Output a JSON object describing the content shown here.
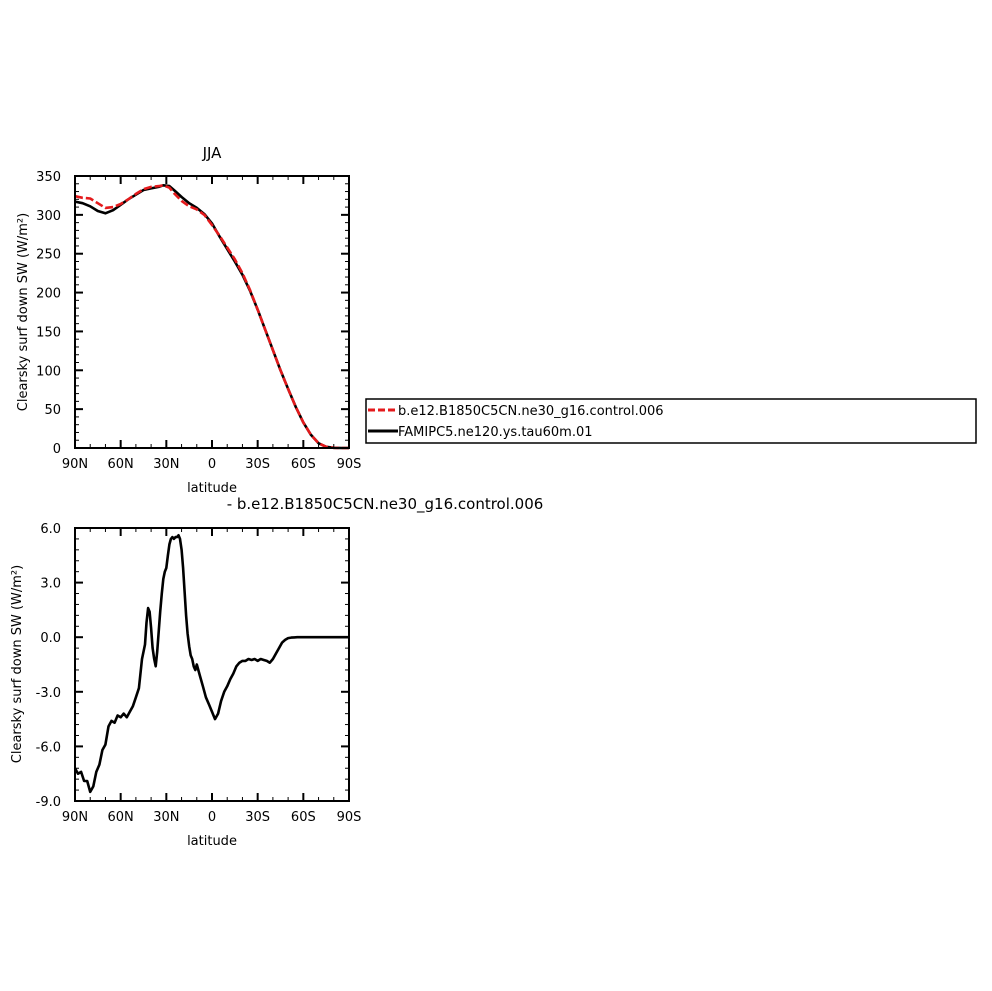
{
  "colors": {
    "model_a": "#e41a1c",
    "model_b": "#000000"
  },
  "chart_data": [
    {
      "type": "line",
      "title": "JJA",
      "xlabel": "latitude",
      "ylabel": "Clearsky surf down SW (W/m²)",
      "xlim": [
        90,
        -90
      ],
      "ylim": [
        0,
        350
      ],
      "x_ticks": [
        90,
        60,
        30,
        0,
        -30,
        -60,
        -90
      ],
      "x_tick_labels": [
        "90N",
        "60N",
        "30N",
        "0",
        "30S",
        "60S",
        "90S"
      ],
      "y_ticks": [
        0,
        50,
        100,
        150,
        200,
        250,
        300,
        350
      ],
      "y_tick_labels": [
        "0",
        "50",
        "100",
        "150",
        "200",
        "250",
        "300",
        "350"
      ],
      "legend": {
        "placement": "right",
        "style": "boxed"
      },
      "series": [
        {
          "name": "b.e12.B1850C5CN.ne30_g16.control.006",
          "color": "#e41a1c",
          "dashed": true,
          "x": [
            90,
            85,
            80,
            75,
            70,
            65,
            60,
            55,
            50,
            45,
            40,
            35,
            32,
            28,
            25,
            20,
            15,
            10,
            5,
            0,
            -5,
            -10,
            -15,
            -20,
            -25,
            -30,
            -35,
            -40,
            -45,
            -50,
            -55,
            -60,
            -65,
            -70,
            -75,
            -80,
            -85,
            -90
          ],
          "values": [
            324,
            322,
            321,
            315,
            309,
            310,
            314,
            320,
            327,
            333,
            336,
            337,
            338,
            335,
            328,
            318,
            311,
            307,
            300,
            287,
            273,
            258,
            243,
            225,
            203,
            178,
            152,
            126,
            100,
            76,
            53,
            33,
            17,
            6,
            1.5,
            0.3,
            0,
            0
          ]
        },
        {
          "name": "FAMIPC5.ne120.ys.tau60m.01",
          "color": "#000000",
          "dashed": false,
          "x": [
            90,
            85,
            80,
            75,
            70,
            65,
            60,
            55,
            50,
            45,
            40,
            35,
            32,
            28,
            25,
            20,
            15,
            10,
            5,
            0,
            -5,
            -10,
            -15,
            -20,
            -25,
            -30,
            -35,
            -40,
            -45,
            -50,
            -55,
            -60,
            -65,
            -70,
            -75,
            -80,
            -85,
            -90
          ],
          "values": [
            317,
            315,
            311,
            305,
            302,
            306,
            313,
            320,
            326,
            332,
            334,
            336,
            338,
            337,
            332,
            323,
            315,
            309,
            301,
            289,
            272,
            256,
            240,
            223,
            202,
            178,
            152,
            126,
            100,
            76,
            53,
            33,
            17,
            6,
            1.5,
            0.3,
            0,
            0
          ]
        }
      ]
    },
    {
      "type": "line",
      "title": "- b.e12.B1850C5CN.ne30_g16.control.006",
      "xlabel": "latitude",
      "ylabel": "Clearsky surf down SW (W/m²)",
      "xlim": [
        90,
        -90
      ],
      "ylim": [
        -9,
        6
      ],
      "x_ticks": [
        90,
        60,
        30,
        0,
        -30,
        -60,
        -90
      ],
      "x_tick_labels": [
        "90N",
        "60N",
        "30N",
        "0",
        "30S",
        "60S",
        "90S"
      ],
      "y_ticks": [
        -9,
        -6,
        -3,
        0,
        3,
        6
      ],
      "y_tick_labels": [
        "-9.0",
        "-6.0",
        "-3.0",
        "0.0",
        "3.0",
        "6.0"
      ],
      "series": [
        {
          "color": "#000000",
          "dashed": false,
          "x": [
            90,
            88,
            86,
            84,
            82,
            80,
            78,
            76,
            74,
            72,
            70,
            68,
            66,
            64,
            62,
            60,
            58,
            56,
            54,
            52,
            50,
            48,
            46,
            44,
            43,
            42,
            41,
            40,
            39,
            38,
            37,
            36,
            35,
            34,
            33,
            32,
            31,
            30,
            29,
            28,
            27,
            26,
            25,
            24,
            23,
            22,
            21,
            20,
            19,
            18,
            17,
            16,
            15,
            14,
            13,
            12,
            11,
            10,
            8,
            6,
            4,
            2,
            0,
            -2,
            -4,
            -6,
            -8,
            -10,
            -12,
            -14,
            -16,
            -18,
            -20,
            -22,
            -24,
            -26,
            -28,
            -30,
            -32,
            -34,
            -36,
            -38,
            -40,
            -42,
            -44,
            -46,
            -48,
            -50,
            -52,
            -54,
            -56,
            -58,
            -60,
            -62,
            -64,
            -66,
            -68,
            -70,
            -72,
            -75,
            -80,
            -85,
            -90
          ],
          "values": [
            -7.2,
            -7.5,
            -7.4,
            -7.9,
            -7.9,
            -8.5,
            -8.2,
            -7.4,
            -7.0,
            -6.2,
            -5.9,
            -4.9,
            -4.6,
            -4.7,
            -4.3,
            -4.4,
            -4.2,
            -4.4,
            -4.1,
            -3.8,
            -3.3,
            -2.8,
            -1.2,
            -0.4,
            0.8,
            1.6,
            1.4,
            0.5,
            -0.6,
            -1.2,
            -1.6,
            -0.8,
            0.3,
            1.4,
            2.4,
            3.2,
            3.6,
            3.8,
            4.5,
            5.1,
            5.4,
            5.5,
            5.4,
            5.5,
            5.5,
            5.6,
            5.4,
            4.8,
            3.8,
            2.5,
            1.2,
            0.2,
            -0.5,
            -1.0,
            -1.2,
            -1.6,
            -1.8,
            -1.5,
            -2.1,
            -2.7,
            -3.3,
            -3.7,
            -4.1,
            -4.5,
            -4.2,
            -3.5,
            -3.0,
            -2.7,
            -2.3,
            -2.0,
            -1.6,
            -1.4,
            -1.3,
            -1.3,
            -1.2,
            -1.25,
            -1.2,
            -1.3,
            -1.2,
            -1.25,
            -1.3,
            -1.4,
            -1.2,
            -0.9,
            -0.6,
            -0.3,
            -0.15,
            -0.05,
            -0.02,
            -0.01,
            0,
            0,
            0,
            0,
            0,
            0,
            0,
            0,
            0,
            0,
            0,
            0,
            0
          ]
        }
      ]
    }
  ]
}
